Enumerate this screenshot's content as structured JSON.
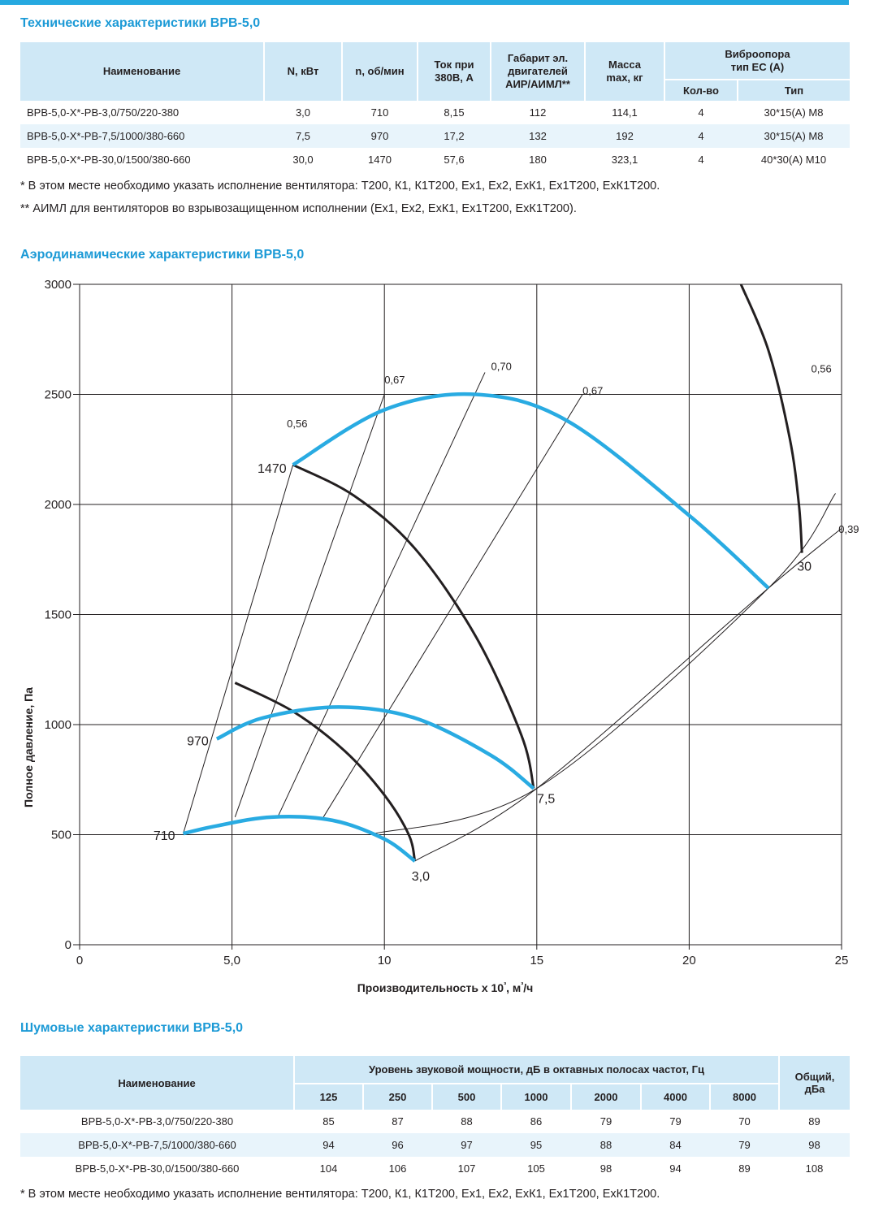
{
  "spec": {
    "title": "Технические характеристики ВРВ-5,0",
    "headers": {
      "name": "Наименование",
      "power": "N, кВт",
      "rpm": "n, об/мин",
      "current_l1": "Ток при",
      "current_l2": "380В, А",
      "frame_l1": "Габарит эл.",
      "frame_l2": "двигателей",
      "frame_l3": "АИР/АИМЛ**",
      "mass_l1": "Масса",
      "mass_l2": "max, кг",
      "vib_l1": "Виброопора",
      "vib_l2": "тип ЕС (А)",
      "vib_qty": "Кол-во",
      "vib_type": "Тип"
    },
    "rows": [
      [
        "ВРВ-5,0-Х*-РВ-3,0/750/220-380",
        "3,0",
        "710",
        "8,15",
        "112",
        "114,1",
        "4",
        "30*15(А) М8"
      ],
      [
        "ВРВ-5,0-Х*-РВ-7,5/1000/380-660",
        "7,5",
        "970",
        "17,2",
        "132",
        "192",
        "4",
        "30*15(А) М8"
      ],
      [
        "ВРВ-5,0-Х*-РВ-30,0/1500/380-660",
        "30,0",
        "1470",
        "57,6",
        "180",
        "323,1",
        "4",
        "40*30(А) М10"
      ]
    ],
    "note1": "* В этом месте необходимо указать исполнение вентилятора: Т200, К1, К1Т200, Ех1, Ех2, ЕхК1, Ех1Т200, ЕхК1Т200.",
    "note2": "** АИМЛ для вентиляторов во взрывозащищенном исполнении (Ех1, Ех2, ЕхК1, Ех1Т200, ЕхК1Т200)."
  },
  "aero": {
    "title": "Аэродинамические характеристики ВРВ-5,0"
  },
  "chart_data": {
    "type": "line",
    "xlabel": "Производительность х 10³, м³/ч",
    "ylabel": "Полное давление, Па",
    "xlim": [
      0,
      25
    ],
    "ylim": [
      0,
      3000
    ],
    "x_ticks": [
      "0",
      "5,0",
      "10",
      "15",
      "20",
      "25"
    ],
    "x_tick_values": [
      0,
      5,
      10,
      15,
      20,
      25
    ],
    "y_ticks": [
      "0",
      "500",
      "1000",
      "1500",
      "2000",
      "2500",
      "3000"
    ],
    "y_tick_values": [
      0,
      500,
      1000,
      1500,
      2000,
      2500,
      3000
    ],
    "grid": true,
    "colors": {
      "speed": "#29abe2",
      "power": "#231f20",
      "efficiency": "#231f20"
    },
    "speed_curves": [
      {
        "label": "710",
        "points": [
          [
            3.4,
            505
          ],
          [
            4.5,
            540
          ],
          [
            6.3,
            580
          ],
          [
            8.3,
            565
          ],
          [
            10.0,
            480
          ],
          [
            11.0,
            380
          ]
        ]
      },
      {
        "label": "970",
        "points": [
          [
            4.5,
            935
          ],
          [
            6.0,
            1030
          ],
          [
            8.5,
            1080
          ],
          [
            11.0,
            1030
          ],
          [
            13.5,
            860
          ],
          [
            14.9,
            710
          ]
        ]
      },
      {
        "label": "1470",
        "points": [
          [
            7.0,
            2180
          ],
          [
            10.0,
            2430
          ],
          [
            13.0,
            2500
          ],
          [
            16.0,
            2380
          ],
          [
            20.0,
            1950
          ],
          [
            22.6,
            1620
          ]
        ]
      }
    ],
    "power_curves": [
      {
        "label": "3,0",
        "points": [
          [
            5.1,
            1190
          ],
          [
            7.0,
            1060
          ],
          [
            8.7,
            880
          ],
          [
            10.0,
            680
          ],
          [
            10.8,
            500
          ],
          [
            11.0,
            380
          ]
        ]
      },
      {
        "label": "7,5",
        "points": [
          [
            7.0,
            2180
          ],
          [
            9.0,
            2040
          ],
          [
            11.0,
            1800
          ],
          [
            13.0,
            1400
          ],
          [
            14.5,
            950
          ],
          [
            14.9,
            710
          ]
        ]
      },
      {
        "label": "30",
        "points": [
          [
            21.7,
            3000
          ],
          [
            22.6,
            2700
          ],
          [
            23.3,
            2300
          ],
          [
            23.6,
            2000
          ],
          [
            23.7,
            1780
          ]
        ]
      }
    ],
    "efficiency_lines": [
      {
        "label": "0,56",
        "points": [
          [
            3.4,
            505
          ],
          [
            7.0,
            2180
          ]
        ]
      },
      {
        "label": "0,67",
        "points": [
          [
            5.1,
            580
          ],
          [
            10.0,
            2500
          ]
        ]
      },
      {
        "label": "0,70",
        "points": [
          [
            6.5,
            580
          ],
          [
            13.3,
            2600
          ]
        ]
      },
      {
        "label": "0,67",
        "points": [
          [
            8.0,
            580
          ],
          [
            16.5,
            2500
          ]
        ]
      },
      {
        "label": "0,56",
        "points": [
          [
            9.5,
            500
          ],
          [
            15.0,
            710
          ],
          [
            22.6,
            1620
          ],
          [
            24.8,
            2050
          ]
        ]
      },
      {
        "label": "0,39",
        "points": [
          [
            11.0,
            380
          ],
          [
            15.0,
            710
          ],
          [
            22.6,
            1620
          ],
          [
            26.0,
            2000
          ]
        ]
      }
    ]
  },
  "noise": {
    "title": "Шумовые характеристики ВРВ-5,0",
    "headers": {
      "name": "Наименование",
      "band": "Уровень звуковой мощности, дБ в октавных полосах частот, Гц",
      "freqs": [
        "125",
        "250",
        "500",
        "1000",
        "2000",
        "4000",
        "8000"
      ],
      "total_l1": "Общий,",
      "total_l2": "дБа"
    },
    "rows": [
      [
        "ВРВ-5,0-Х*-РВ-3,0/750/220-380",
        "85",
        "87",
        "88",
        "86",
        "79",
        "79",
        "70",
        "89"
      ],
      [
        "ВРВ-5,0-Х*-РВ-7,5/1000/380-660",
        "94",
        "96",
        "97",
        "95",
        "88",
        "84",
        "79",
        "98"
      ],
      [
        "ВРВ-5,0-Х*-РВ-30,0/1500/380-660",
        "104",
        "106",
        "107",
        "105",
        "98",
        "94",
        "89",
        "108"
      ]
    ],
    "note": "* В этом месте необходимо указать исполнение вентилятора: Т200, К1, К1Т200, Ех1, Ех2, ЕхК1, Ех1Т200, ЕхК1Т200."
  }
}
